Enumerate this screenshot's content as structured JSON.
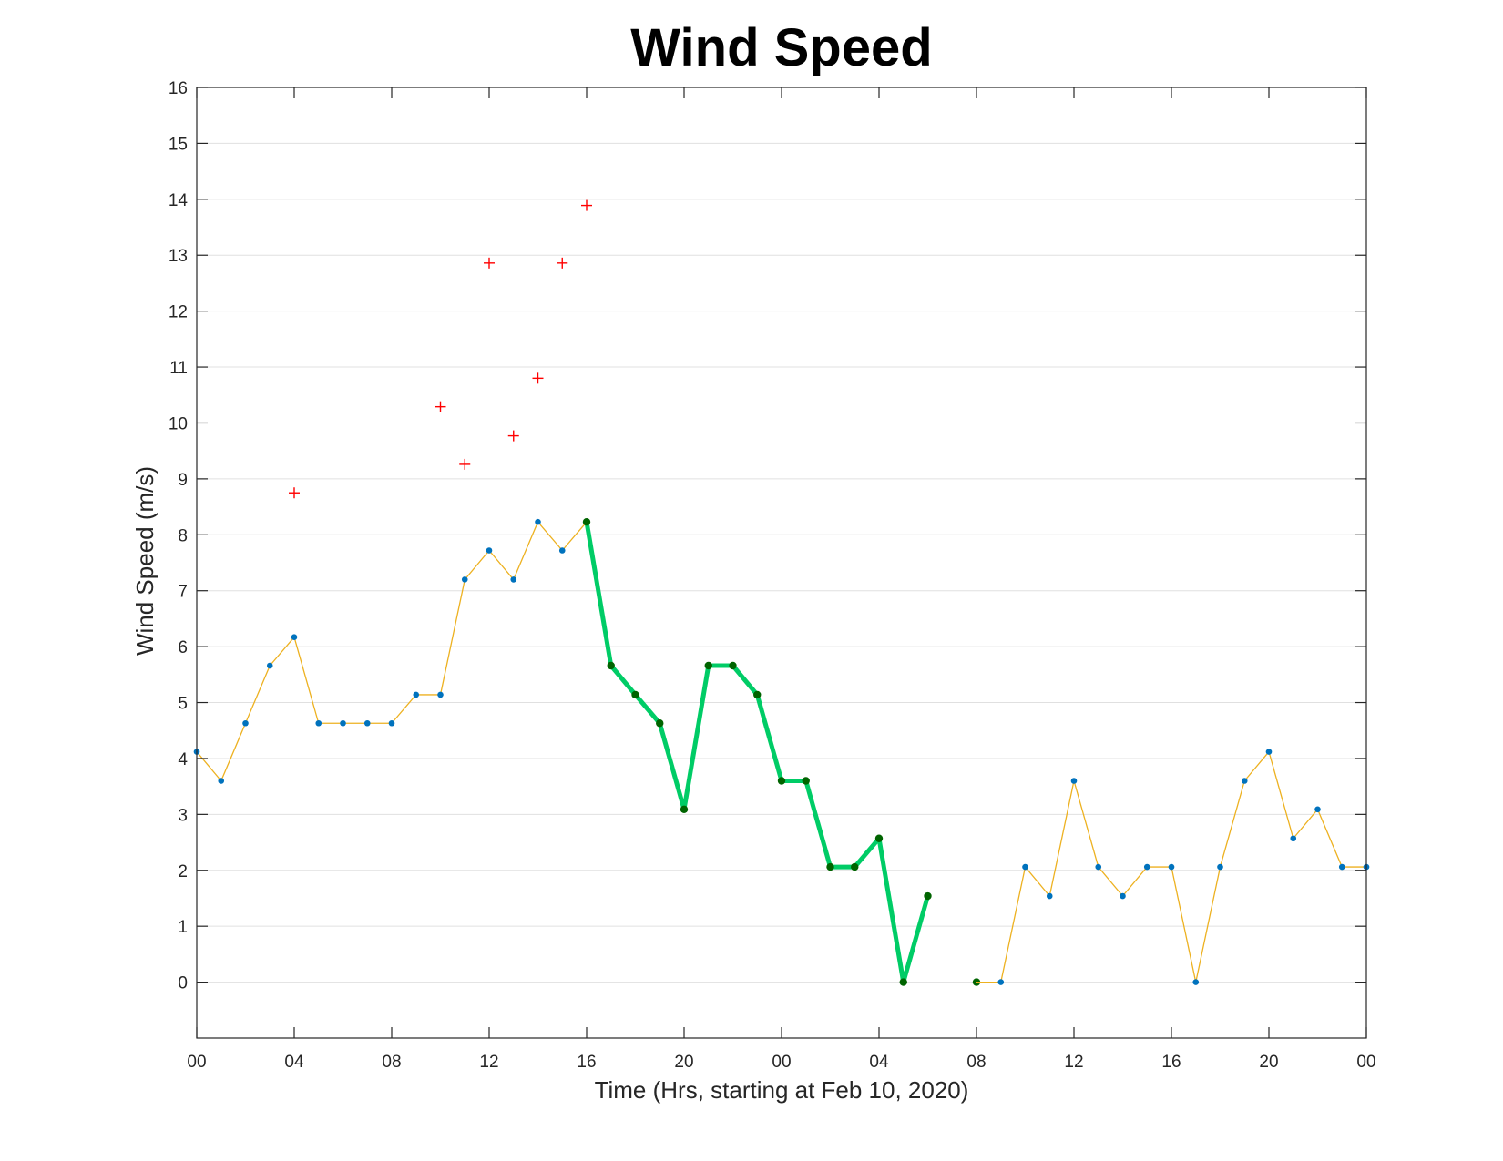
{
  "chart_data": {
    "type": "line",
    "title": "Wind Speed",
    "xlabel": "Time (Hrs, starting at Feb 10, 2020)",
    "ylabel": "Wind Speed (m/s)",
    "ylim": [
      -1,
      16
    ],
    "xlim": [
      "2020-02-10 00:00",
      "2020-02-12 00:00"
    ],
    "x_tick_labels": [
      "00",
      "04",
      "08",
      "12",
      "16",
      "20",
      "00",
      "04",
      "08",
      "12",
      "16",
      "20",
      "00"
    ],
    "y_tick_labels": [
      "0",
      "1",
      "2",
      "3",
      "4",
      "5",
      "6",
      "7",
      "8",
      "9",
      "10",
      "11",
      "12",
      "13",
      "14",
      "15",
      "16"
    ],
    "grid": "horizontal",
    "colors": {
      "series_line": "#EDB120",
      "series_marker": "#0072BD",
      "highlight_line": "#00CC66",
      "highlight_marker": "#006400",
      "gust_marker": "#FF0000",
      "grid": "#E0E0E0",
      "axes": "#262626"
    },
    "series": [
      {
        "x": [
          "2020-02-10 00:00",
          "2020-02-10 01:00",
          "2020-02-10 02:00",
          "2020-02-10 03:00",
          "2020-02-10 04:00",
          "2020-02-10 05:00",
          "2020-02-10 06:00",
          "2020-02-10 07:00",
          "2020-02-10 08:00",
          "2020-02-10 09:00",
          "2020-02-10 10:00",
          "2020-02-10 11:00",
          "2020-02-10 12:00",
          "2020-02-10 13:00",
          "2020-02-10 14:00",
          "2020-02-10 15:00",
          "2020-02-10 16:00"
        ],
        "y": [
          4.12,
          3.6,
          4.63,
          5.66,
          6.17,
          4.63,
          4.63,
          4.63,
          4.63,
          5.14,
          5.14,
          7.2,
          7.72,
          7.2,
          8.23,
          7.72,
          8.23
        ],
        "style": "thin-line-markers",
        "line_color": "#EDB120",
        "marker_color": "#0072BD"
      },
      {
        "x": [
          "2020-02-10 16:00",
          "2020-02-10 17:00",
          "2020-02-10 18:00",
          "2020-02-10 19:00",
          "2020-02-10 20:00",
          "2020-02-10 21:00",
          "2020-02-10 22:00",
          "2020-02-10 23:00",
          "2020-02-11 00:00",
          "2020-02-11 01:00",
          "2020-02-11 02:00",
          "2020-02-11 03:00",
          "2020-02-11 04:00",
          "2020-02-11 05:00",
          "2020-02-11 06:00"
        ],
        "y": [
          8.23,
          5.66,
          5.14,
          4.63,
          3.09,
          5.66,
          5.66,
          5.14,
          3.6,
          3.6,
          2.06,
          2.06,
          2.57,
          0,
          1.54
        ],
        "style": "thick-line-markers",
        "line_color": "#00CC66",
        "marker_color": "#006400"
      },
      {
        "x": [
          "2020-02-11 08:00"
        ],
        "y": [
          0
        ],
        "style": "markers",
        "line_color": "#00CC66",
        "marker_color": "#006400"
      },
      {
        "x": [
          "2020-02-11 09:00",
          "2020-02-11 10:00",
          "2020-02-11 11:00",
          "2020-02-11 12:00",
          "2020-02-11 13:00",
          "2020-02-11 14:00",
          "2020-02-11 15:00",
          "2020-02-11 16:00",
          "2020-02-11 17:00",
          "2020-02-11 18:00",
          "2020-02-11 19:00",
          "2020-02-11 20:00",
          "2020-02-11 21:00",
          "2020-02-11 22:00",
          "2020-02-11 23:00",
          "2020-02-12 00:00"
        ],
        "y": [
          0,
          2.06,
          1.54,
          3.6,
          2.06,
          1.54,
          2.06,
          2.06,
          0,
          2.06,
          3.6,
          4.12,
          2.57,
          3.09,
          2.06,
          2.06
        ],
        "style": "thin-line-markers",
        "line_color": "#EDB120",
        "marker_color": "#0072BD",
        "connect_from_previous": true
      },
      {
        "x": [
          "2020-02-10 04:00",
          "2020-02-10 10:00",
          "2020-02-10 11:00",
          "2020-02-10 12:00",
          "2020-02-10 13:00",
          "2020-02-10 14:00",
          "2020-02-10 15:00",
          "2020-02-10 16:00"
        ],
        "y": [
          8.75,
          10.29,
          9.26,
          12.86,
          9.77,
          10.8,
          12.86,
          13.89
        ],
        "style": "plus-markers",
        "marker_color": "#FF0000"
      }
    ]
  }
}
